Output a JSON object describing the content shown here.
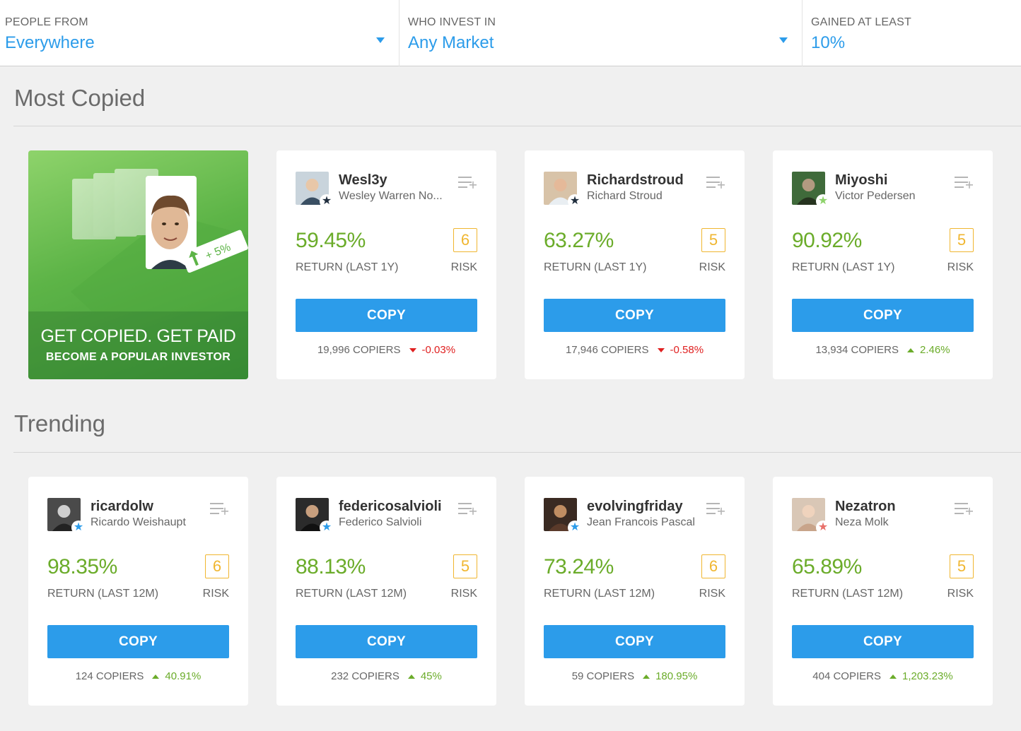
{
  "filters": [
    {
      "label": "PEOPLE FROM",
      "value": "Everywhere",
      "dropdown": true
    },
    {
      "label": "WHO INVEST IN",
      "value": "Any Market",
      "dropdown": true
    },
    {
      "label": "GAINED AT LEAST",
      "value": "10%",
      "dropdown": false
    }
  ],
  "sections": {
    "most_copied": "Most Copied",
    "trending": "Trending"
  },
  "promo": {
    "badge_text": "+ 5%",
    "title": "GET COPIED. GET PAID",
    "subtitle": "BECOME A POPULAR INVESTOR"
  },
  "copy_label": "COPY",
  "risk_label": "RISK",
  "colors": {
    "accent": "#2c9cea",
    "gain": "#6bac2a",
    "loss": "#e02020",
    "risk": "#f0b630"
  },
  "most_copied": [
    {
      "username": "Wesl3y",
      "full_name": "Wesley Warren No...",
      "gain": "59.45%",
      "gain_label": "RETURN (LAST 1Y)",
      "risk": "6",
      "copiers": "19,996 COPIERS",
      "delta": "-0.03%",
      "trend": "down",
      "badge_icon": "dark-star-icon",
      "badge_color": "#1f2d3d"
    },
    {
      "username": "Richardstroud",
      "full_name": "Richard Stroud",
      "gain": "63.27%",
      "gain_label": "RETURN (LAST 1Y)",
      "risk": "5",
      "copiers": "17,946 COPIERS",
      "delta": "-0.58%",
      "trend": "down",
      "badge_icon": "dark-star-icon",
      "badge_color": "#1f2d3d"
    },
    {
      "username": "Miyoshi",
      "full_name": "Victor Pedersen",
      "gain": "90.92%",
      "gain_label": "RETURN (LAST 1Y)",
      "risk": "5",
      "copiers": "13,934 COPIERS",
      "delta": "2.46%",
      "trend": "up",
      "badge_icon": "green-star-icon",
      "badge_color": "#8ed36b"
    }
  ],
  "trending": [
    {
      "username": "ricardolw",
      "full_name": "Ricardo Weishaupt",
      "gain": "98.35%",
      "gain_label": "RETURN (LAST 12M)",
      "risk": "6",
      "copiers": "124 COPIERS",
      "delta": "40.91%",
      "trend": "up",
      "badge_icon": "blue-star-icon",
      "badge_color": "#2c9cea"
    },
    {
      "username": "federicosalvioli",
      "full_name": "Federico Salvioli",
      "gain": "88.13%",
      "gain_label": "RETURN (LAST 12M)",
      "risk": "5",
      "copiers": "232 COPIERS",
      "delta": "45%",
      "trend": "up",
      "badge_icon": "blue-star-icon",
      "badge_color": "#2c9cea"
    },
    {
      "username": "evolvingfriday",
      "full_name": "Jean Francois Pascal",
      "gain": "73.24%",
      "gain_label": "RETURN (LAST 12M)",
      "risk": "6",
      "copiers": "59 COPIERS",
      "delta": "180.95%",
      "trend": "up",
      "badge_icon": "blue-star-icon",
      "badge_color": "#2c9cea"
    },
    {
      "username": "Nezatron",
      "full_name": "Neza Molk",
      "gain": "65.89%",
      "gain_label": "RETURN (LAST 12M)",
      "risk": "5",
      "copiers": "404 COPIERS",
      "delta": "1,203.23%",
      "trend": "up",
      "badge_icon": "red-star-icon",
      "badge_color": "#e8706a"
    }
  ]
}
